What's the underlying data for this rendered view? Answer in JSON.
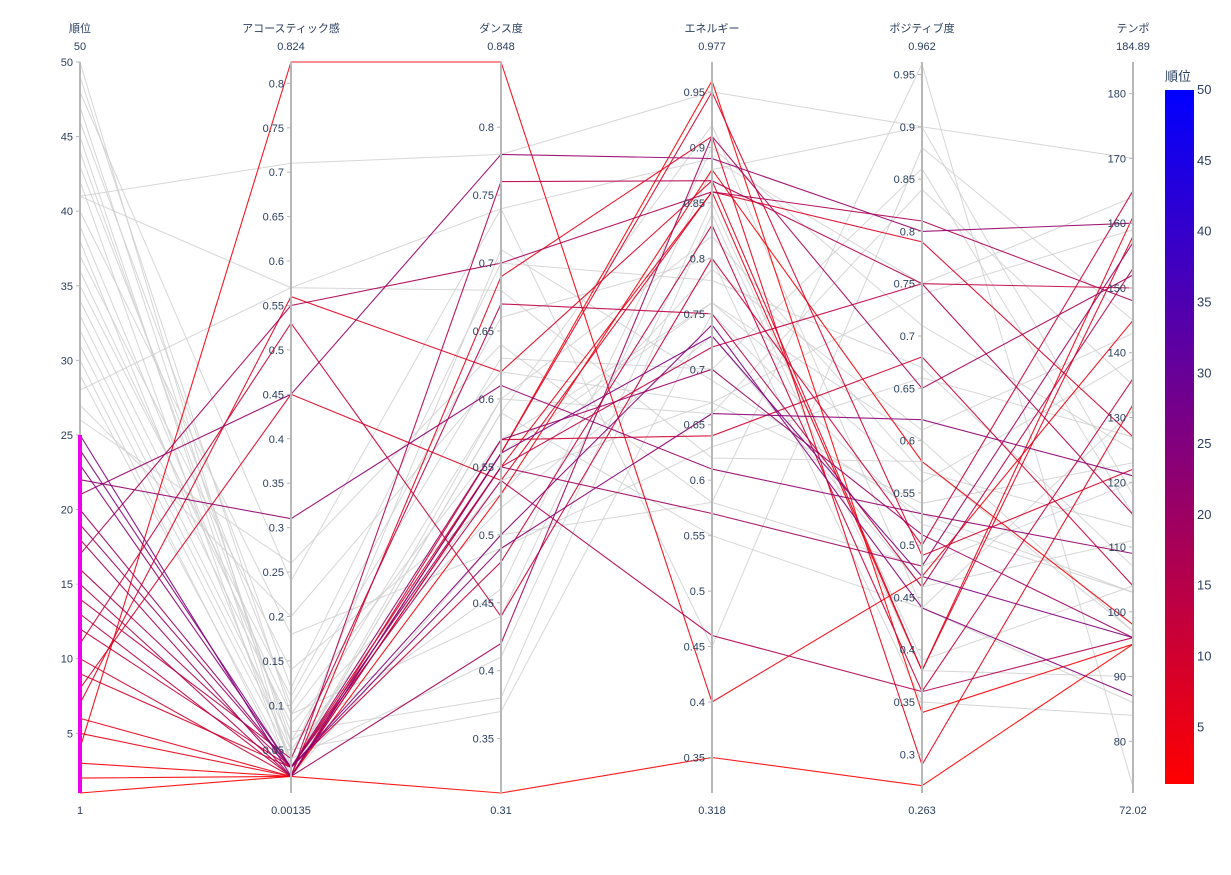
{
  "chart_data": {
    "type": "parallel_coordinates",
    "color_dimension": "順位",
    "colorbar": {
      "title": "順位",
      "range": [
        1,
        50
      ],
      "ticks": [
        5,
        10,
        15,
        20,
        25,
        30,
        35,
        40,
        45,
        50
      ],
      "colorscale": [
        "#ff0000",
        "#0000ff"
      ]
    },
    "dimensions": [
      {
        "label": "順位",
        "min_label": "1",
        "max_label": "50",
        "range": [
          1,
          50
        ],
        "ticks": [
          5,
          10,
          15,
          20,
          25,
          30,
          35,
          40,
          45,
          50
        ],
        "tick_labels": [
          "5",
          "10",
          "15",
          "20",
          "25",
          "30",
          "35",
          "40",
          "45",
          "50"
        ],
        "constraint": [
          1,
          25
        ]
      },
      {
        "label": "アコースティック感",
        "min_label": "0.00135",
        "max_label": "0.824",
        "range": [
          0.00135,
          0.824
        ],
        "ticks": [
          0.05,
          0.1,
          0.15,
          0.2,
          0.25,
          0.3,
          0.35,
          0.4,
          0.45,
          0.5,
          0.55,
          0.6,
          0.65,
          0.7,
          0.75,
          0.8
        ],
        "tick_labels": [
          "0.05",
          "0.1",
          "0.15",
          "0.2",
          "0.25",
          "0.3",
          "0.35",
          "0.4",
          "0.45",
          "0.5",
          "0.55",
          "0.6",
          "0.65",
          "0.7",
          "0.75",
          "0.8"
        ]
      },
      {
        "label": "ダンス度",
        "min_label": "0.31",
        "max_label": "0.848",
        "range": [
          0.31,
          0.848
        ],
        "ticks": [
          0.35,
          0.4,
          0.45,
          0.5,
          0.55,
          0.6,
          0.65,
          0.7,
          0.75,
          0.8
        ],
        "tick_labels": [
          "0.35",
          "0.4",
          "0.45",
          "0.5",
          "0.55",
          "0.6",
          "0.65",
          "0.7",
          "0.75",
          "0.8"
        ]
      },
      {
        "label": "エネルギー",
        "min_label": "0.318",
        "max_label": "0.977",
        "range": [
          0.318,
          0.977
        ],
        "ticks": [
          0.35,
          0.4,
          0.45,
          0.5,
          0.55,
          0.6,
          0.65,
          0.7,
          0.75,
          0.8,
          0.85,
          0.9,
          0.95
        ],
        "tick_labels": [
          "0.35",
          "0.4",
          "0.45",
          "0.5",
          "0.55",
          "0.6",
          "0.65",
          "0.7",
          "0.75",
          "0.8",
          "0.85",
          "0.9",
          "0.95"
        ]
      },
      {
        "label": "ポジティブ度",
        "min_label": "0.263",
        "max_label": "0.962",
        "range": [
          0.263,
          0.962
        ],
        "ticks": [
          0.3,
          0.35,
          0.4,
          0.45,
          0.5,
          0.55,
          0.6,
          0.65,
          0.7,
          0.75,
          0.8,
          0.85,
          0.9,
          0.95
        ],
        "tick_labels": [
          "0.3",
          "0.35",
          "0.4",
          "0.45",
          "0.5",
          "0.55",
          "0.6",
          "0.65",
          "0.7",
          "0.75",
          "0.8",
          "0.85",
          "0.9",
          "0.95"
        ]
      },
      {
        "label": "テンポ",
        "min_label": "72.02",
        "max_label": "184.89",
        "range": [
          72.02,
          184.89
        ],
        "ticks": [
          80,
          90,
          100,
          110,
          120,
          130,
          140,
          150,
          160,
          170,
          180
        ],
        "tick_labels": [
          "80",
          "90",
          "100",
          "110",
          "120",
          "130",
          "140",
          "150",
          "160",
          "170",
          "180"
        ]
      }
    ],
    "records": [
      [
        1,
        0.02,
        0.31,
        0.35,
        0.27,
        95
      ],
      [
        2,
        0.02,
        0.56,
        0.96,
        0.34,
        95
      ],
      [
        3,
        0.02,
        0.53,
        0.88,
        0.58,
        98
      ],
      [
        4,
        0.824,
        0.848,
        0.4,
        0.47,
        145
      ],
      [
        5,
        0.02,
        0.55,
        0.86,
        0.38,
        161
      ],
      [
        6,
        0.02,
        0.69,
        0.91,
        0.29,
        132
      ],
      [
        7,
        0.56,
        0.62,
        0.87,
        0.38,
        158
      ],
      [
        8,
        0.45,
        0.54,
        0.86,
        0.79,
        127
      ],
      [
        9,
        0.03,
        0.56,
        0.95,
        0.49,
        122
      ],
      [
        10,
        0.02,
        0.57,
        0.64,
        0.68,
        104
      ],
      [
        11,
        0.53,
        0.44,
        0.8,
        0.5,
        165
      ],
      [
        12,
        0.03,
        0.48,
        0.83,
        0.36,
        136
      ],
      [
        13,
        0.02,
        0.55,
        0.72,
        0.75,
        150
      ],
      [
        14,
        0.04,
        0.67,
        0.75,
        0.46,
        153
      ],
      [
        15,
        0.02,
        0.76,
        0.87,
        0.75,
        115
      ],
      [
        16,
        0.03,
        0.54,
        0.46,
        0.36,
        96
      ],
      [
        17,
        0.55,
        0.7,
        0.86,
        0.81,
        148
      ],
      [
        18,
        0.02,
        0.42,
        0.91,
        0.65,
        152
      ],
      [
        19,
        0.03,
        0.55,
        0.57,
        0.48,
        157
      ],
      [
        20,
        0.03,
        0.57,
        0.7,
        0.51,
        96
      ],
      [
        21,
        0.45,
        0.78,
        0.89,
        0.8,
        160
      ],
      [
        22,
        0.31,
        0.61,
        0.61,
        0.53,
        109
      ],
      [
        23,
        0.03,
        0.49,
        0.66,
        0.62,
        121
      ],
      [
        24,
        0.03,
        0.5,
        0.74,
        0.44,
        87
      ],
      [
        25,
        0.02,
        0.56,
        0.73,
        0.47,
        96
      ],
      [
        26,
        0.26,
        0.64,
        0.58,
        0.96,
        73
      ],
      [
        27,
        0.2,
        0.62,
        0.67,
        0.74,
        159
      ],
      [
        28,
        0.57,
        0.74,
        0.89,
        0.75,
        164
      ],
      [
        29,
        0.03,
        0.59,
        0.92,
        0.44,
        86
      ],
      [
        30,
        0.02,
        0.5,
        0.58,
        0.48,
        120
      ],
      [
        31,
        0.04,
        0.41,
        0.85,
        0.39,
        104
      ],
      [
        32,
        0.05,
        0.37,
        0.75,
        0.52,
        103
      ],
      [
        33,
        0.06,
        0.6,
        0.66,
        0.84,
        135
      ],
      [
        34,
        0.08,
        0.52,
        0.73,
        0.46,
        111
      ],
      [
        35,
        0.11,
        0.66,
        0.8,
        0.35,
        84
      ],
      [
        36,
        0.09,
        0.44,
        0.88,
        0.9,
        118
      ],
      [
        37,
        0.14,
        0.53,
        0.79,
        0.61,
        143
      ],
      [
        38,
        0.04,
        0.71,
        0.69,
        0.53,
        103
      ],
      [
        39,
        0.07,
        0.38,
        0.84,
        0.38,
        90
      ],
      [
        40,
        0.18,
        0.49,
        0.63,
        0.66,
        127
      ],
      [
        41,
        0.57,
        0.68,
        0.62,
        0.58,
        97
      ],
      [
        41,
        0.71,
        0.78,
        0.95,
        0.9,
        170
      ],
      [
        42,
        0.02,
        0.56,
        0.76,
        0.56,
        139
      ],
      [
        43,
        0.1,
        0.63,
        0.7,
        0.86,
        115
      ],
      [
        44,
        0.06,
        0.46,
        0.9,
        0.71,
        125
      ],
      [
        45,
        0.03,
        0.59,
        0.55,
        0.44,
        131
      ],
      [
        46,
        0.12,
        0.7,
        0.78,
        0.67,
        107
      ],
      [
        47,
        0.05,
        0.54,
        0.67,
        0.54,
        123
      ],
      [
        48,
        0.24,
        0.74,
        0.45,
        0.88,
        145
      ],
      [
        49,
        0.09,
        0.57,
        0.76,
        0.6,
        97
      ],
      [
        50,
        0.03,
        0.6,
        0.82,
        0.57,
        113
      ]
    ]
  }
}
